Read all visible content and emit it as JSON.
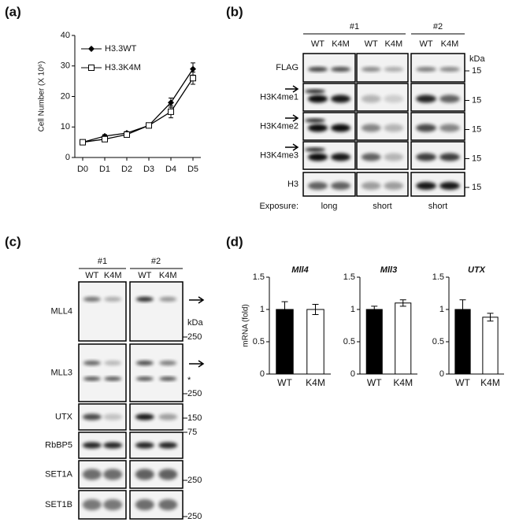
{
  "panel_labels": [
    "(a)",
    "(b)",
    "(c)",
    "(d)"
  ],
  "chart_data": [
    {
      "type": "line",
      "ylabel": "Cell Number (X 10⁶)",
      "categories": [
        "D0",
        "D1",
        "D2",
        "D3",
        "D4",
        "D5"
      ],
      "ylim": [
        0,
        40
      ],
      "yticks": [
        0,
        10,
        20,
        30,
        40
      ],
      "legend": "upper left",
      "series": [
        {
          "name": "H3.3WT",
          "color": "#000000",
          "marker": "diamond",
          "values": [
            5,
            7,
            8,
            10.5,
            18,
            29
          ],
          "errors": [
            0.5,
            0.5,
            0.5,
            0.5,
            1.5,
            2
          ]
        },
        {
          "name": "H3.3K4M",
          "color": "#000000",
          "marker": "square",
          "values": [
            5,
            6,
            7.5,
            10.5,
            15,
            26
          ],
          "errors": [
            0.5,
            0.5,
            0.5,
            0.5,
            2,
            2
          ]
        }
      ]
    },
    {
      "type": "bar",
      "title": "Mll4",
      "ylabel": "mRNA (fold)",
      "categories": [
        "WT",
        "K4M"
      ],
      "values": [
        1,
        1
      ],
      "errors": [
        0.12,
        0.08
      ],
      "colors": [
        "#000000",
        "#ffffff"
      ],
      "ylim": [
        0,
        1.5
      ],
      "yticks": [
        0,
        0.5,
        1,
        1.5
      ]
    },
    {
      "type": "bar",
      "title": "Mll3",
      "categories": [
        "WT",
        "K4M"
      ],
      "values": [
        1,
        1.1
      ],
      "errors": [
        0.05,
        0.05
      ],
      "colors": [
        "#000000",
        "#ffffff"
      ],
      "ylim": [
        0,
        1.5
      ],
      "yticks": [
        0,
        0.5,
        1,
        1.5
      ]
    },
    {
      "type": "bar",
      "title": "UTX",
      "categories": [
        "WT",
        "K4M"
      ],
      "values": [
        1,
        0.88
      ],
      "errors": [
        0.15,
        0.06
      ],
      "colors": [
        "#000000",
        "#ffffff"
      ],
      "ylim": [
        0,
        1.5
      ],
      "yticks": [
        0,
        0.5,
        1,
        1.5
      ]
    }
  ],
  "blot_b": {
    "groups": [
      "#1",
      "#2"
    ],
    "lanes": [
      "WT",
      "K4M",
      "WT",
      "K4M",
      "WT",
      "K4M"
    ],
    "kda": "kDa",
    "rows": [
      {
        "name": "FLAG",
        "marker": "15"
      },
      {
        "name": "H3K4me1",
        "marker": "15"
      },
      {
        "name": "H3K4me2",
        "marker": "15"
      },
      {
        "name": "H3K4me3",
        "marker": "15"
      },
      {
        "name": "H3",
        "marker": "15"
      }
    ],
    "exposure_label": "Exposure:",
    "exposures": [
      "long",
      "short",
      "short"
    ]
  },
  "blot_c": {
    "groups": [
      "#1",
      "#2"
    ],
    "lanes": [
      "WT",
      "K4M",
      "WT",
      "K4M"
    ],
    "rows": [
      {
        "name": "MLL4",
        "markers": [
          "kDa",
          "250"
        ]
      },
      {
        "name": "MLL3",
        "markers": [
          "*",
          "250"
        ]
      },
      {
        "name": "UTX",
        "markers": [
          "150"
        ]
      },
      {
        "name": "RbBP5",
        "markers": [
          "75"
        ]
      },
      {
        "name": "SET1A",
        "markers": [
          "250"
        ]
      },
      {
        "name": "SET1B",
        "markers": [
          "250"
        ]
      }
    ]
  }
}
